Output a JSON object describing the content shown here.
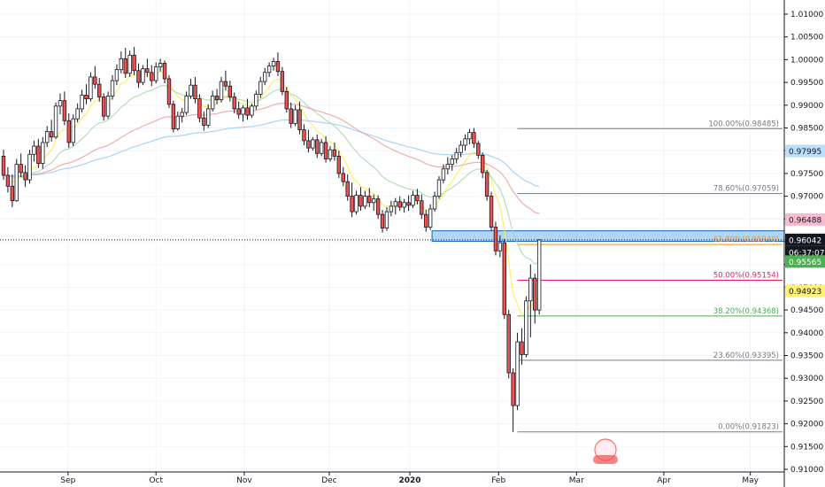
{
  "chart_data": {
    "type": "candlestick",
    "y_axis": {
      "side": "right",
      "range": [
        0.91,
        1.015
      ],
      "ticks": [
        "1.01000",
        "1.00500",
        "1.00000",
        "0.99500",
        "0.99000",
        "0.98500",
        "0.98000",
        "0.97500",
        "0.97000",
        "0.96500",
        "0.96000",
        "0.95500",
        "0.95000",
        "0.94500",
        "0.94000",
        "0.93500",
        "0.93000",
        "0.92500",
        "0.92000",
        "0.91500",
        "0.91000"
      ]
    },
    "x_axis": {
      "ticks": [
        {
          "label": "Sep",
          "pos": 0.0868,
          "bold": false
        },
        {
          "label": "Oct",
          "pos": 0.1989,
          "bold": false
        },
        {
          "label": "Nov",
          "pos": 0.3114,
          "bold": false
        },
        {
          "label": "Dec",
          "pos": 0.4198,
          "bold": false
        },
        {
          "label": "2020",
          "pos": 0.5226,
          "bold": true
        },
        {
          "label": "Feb",
          "pos": 0.6357,
          "bold": false
        },
        {
          "label": "Mar",
          "pos": 0.7351,
          "bold": false
        },
        {
          "label": "Apr",
          "pos": 0.8465,
          "bold": false
        },
        {
          "label": "May",
          "pos": 0.9567,
          "bold": false
        }
      ]
    },
    "fibonacci": [
      {
        "label": "100.00%(0.98485)",
        "value": 0.98485,
        "color": "#787b86"
      },
      {
        "label": "78.60%(0.97059)",
        "value": 0.97059,
        "color": "#787b86"
      },
      {
        "label": "61.80%(0.95940)",
        "value": 0.9594,
        "color": "#f7931a"
      },
      {
        "label": "50.00%(0.95154)",
        "value": 0.95154,
        "color": "#e91e63"
      },
      {
        "label": "38.20%(0.94368)",
        "value": 0.94368,
        "color": "#4caf50"
      },
      {
        "label": "23.60%(0.93395)",
        "value": 0.93395,
        "color": "#787b86"
      },
      {
        "label": "0.00%(0.91823)",
        "value": 0.91823,
        "color": "#787b86"
      }
    ],
    "price_badges": [
      {
        "value": 0.97995,
        "label": "0.97995",
        "bg": "#bbdefb",
        "fg": "#131722"
      },
      {
        "value": 0.96488,
        "label": "0.96488",
        "bg": "#f8bbd0",
        "fg": "#131722"
      },
      {
        "value": 0.96042,
        "label": "0.96042",
        "bg": "#131722",
        "fg": "#ffffff"
      },
      {
        "value": 0.95565,
        "label": "0.95565",
        "bg": "#4caf50",
        "fg": "#ffffff"
      },
      {
        "value": 0.94923,
        "label": "0.94923",
        "bg": "#fff176",
        "fg": "#131722"
      }
    ],
    "countdown": "06:37:07",
    "current_price": 0.96042,
    "support_zone": {
      "from": 0.9601,
      "to": 0.9624,
      "color": "#1565c0"
    },
    "colors": {
      "up": "#ffffff",
      "down": "#ef5350",
      "outline": "#131722",
      "grid": "#f0f3fa"
    },
    "candles": [
      [
        0.9788,
        0.9802,
        0.9736,
        0.9746
      ],
      [
        0.9746,
        0.9764,
        0.9708,
        0.9722
      ],
      [
        0.9722,
        0.9748,
        0.9676,
        0.969
      ],
      [
        0.969,
        0.9782,
        0.9688,
        0.977
      ],
      [
        0.977,
        0.9794,
        0.9742,
        0.9752
      ],
      [
        0.9752,
        0.9768,
        0.972,
        0.9736
      ],
      [
        0.9736,
        0.9802,
        0.9728,
        0.9792
      ],
      [
        0.9792,
        0.9822,
        0.9776,
        0.981
      ],
      [
        0.981,
        0.9826,
        0.9762,
        0.9772
      ],
      [
        0.9772,
        0.983,
        0.976,
        0.9818
      ],
      [
        0.9818,
        0.9854,
        0.9808,
        0.9842
      ],
      [
        0.9842,
        0.9868,
        0.982,
        0.983
      ],
      [
        0.983,
        0.9906,
        0.9826,
        0.9898
      ],
      [
        0.9898,
        0.9926,
        0.988,
        0.991
      ],
      [
        0.991,
        0.993,
        0.9856,
        0.9866
      ],
      [
        0.9866,
        0.9882,
        0.9806,
        0.9818
      ],
      [
        0.9818,
        0.988,
        0.981,
        0.987
      ],
      [
        0.987,
        0.9904,
        0.9862,
        0.9892
      ],
      [
        0.9892,
        0.9934,
        0.9884,
        0.9922
      ],
      [
        0.9922,
        0.9946,
        0.9902,
        0.9914
      ],
      [
        0.9914,
        0.9972,
        0.9908,
        0.9962
      ],
      [
        0.9962,
        0.9986,
        0.9936,
        0.9946
      ],
      [
        0.9946,
        0.996,
        0.9908,
        0.9918
      ],
      [
        0.9918,
        0.9926,
        0.9866,
        0.9876
      ],
      [
        0.9876,
        0.993,
        0.987,
        0.992
      ],
      [
        0.992,
        0.9966,
        0.9912,
        0.9954
      ],
      [
        0.9954,
        0.999,
        0.9944,
        0.9978
      ],
      [
        0.9978,
        1.0018,
        0.997,
        1.0002
      ],
      [
        1.0002,
        1.0026,
        0.996,
        0.997
      ],
      [
        0.997,
        1.002,
        0.9962,
        1.001
      ],
      [
        1.001,
        1.0028,
        0.9966,
        0.9976
      ],
      [
        0.9976,
        0.9992,
        0.9938,
        0.995
      ],
      [
        0.995,
        0.9988,
        0.9944,
        0.998
      ],
      [
        0.998,
        1.0002,
        0.9962,
        0.9972
      ],
      [
        0.9972,
        0.9988,
        0.9942,
        0.9954
      ],
      [
        0.9954,
        0.9994,
        0.9948,
        0.9984
      ],
      [
        0.9984,
        1.0002,
        0.9974,
        0.9992
      ],
      [
        0.9992,
        0.9998,
        0.9948,
        0.9958
      ],
      [
        0.9958,
        0.9966,
        0.9894,
        0.9902
      ],
      [
        0.9902,
        0.991,
        0.984,
        0.9848
      ],
      [
        0.9848,
        0.9886,
        0.9844,
        0.9876
      ],
      [
        0.9876,
        0.9894,
        0.9862,
        0.9884
      ],
      [
        0.9884,
        0.993,
        0.9878,
        0.992
      ],
      [
        0.992,
        0.9958,
        0.9914,
        0.9944
      ],
      [
        0.9944,
        0.9962,
        0.9904,
        0.9914
      ],
      [
        0.9914,
        0.9924,
        0.9862,
        0.9872
      ],
      [
        0.9872,
        0.9886,
        0.9844,
        0.9856
      ],
      [
        0.9856,
        0.9902,
        0.985,
        0.9892
      ],
      [
        0.9892,
        0.9932,
        0.9886,
        0.992
      ],
      [
        0.992,
        0.9936,
        0.9902,
        0.9912
      ],
      [
        0.9912,
        0.9962,
        0.9906,
        0.9952
      ],
      [
        0.9952,
        0.9976,
        0.9932,
        0.9942
      ],
      [
        0.9942,
        0.9954,
        0.9908,
        0.9918
      ],
      [
        0.9918,
        0.9928,
        0.9882,
        0.9892
      ],
      [
        0.9892,
        0.9908,
        0.987,
        0.988
      ],
      [
        0.988,
        0.99,
        0.9864,
        0.9894
      ],
      [
        0.9894,
        0.9914,
        0.9868,
        0.9878
      ],
      [
        0.9878,
        0.9904,
        0.9872,
        0.9898
      ],
      [
        0.9898,
        0.9932,
        0.989,
        0.9924
      ],
      [
        0.9924,
        0.9962,
        0.9916,
        0.9952
      ],
      [
        0.9952,
        0.9982,
        0.9944,
        0.9972
      ],
      [
        0.9972,
        0.9994,
        0.9962,
        0.9986
      ],
      [
        0.9986,
        1.0004,
        0.9976,
        0.9996
      ],
      [
        0.9996,
        1.0016,
        0.9964,
        0.9974
      ],
      [
        0.9974,
        0.9984,
        0.9922,
        0.993
      ],
      [
        0.993,
        0.994,
        0.9884,
        0.9892
      ],
      [
        0.9892,
        0.9906,
        0.985,
        0.986
      ],
      [
        0.986,
        0.99,
        0.9854,
        0.989
      ],
      [
        0.989,
        0.9908,
        0.9836,
        0.9846
      ],
      [
        0.9846,
        0.9858,
        0.9812,
        0.9822
      ],
      [
        0.9822,
        0.9846,
        0.9796,
        0.9806
      ],
      [
        0.9806,
        0.983,
        0.98,
        0.9824
      ],
      [
        0.9824,
        0.9836,
        0.9784,
        0.9794
      ],
      [
        0.9794,
        0.9826,
        0.9788,
        0.9818
      ],
      [
        0.9818,
        0.9832,
        0.9774,
        0.9782
      ],
      [
        0.9782,
        0.981,
        0.9776,
        0.9802
      ],
      [
        0.9802,
        0.9818,
        0.9778,
        0.9788
      ],
      [
        0.9788,
        0.98,
        0.974,
        0.975
      ],
      [
        0.975,
        0.9764,
        0.9722,
        0.9732
      ],
      [
        0.9732,
        0.9748,
        0.969,
        0.97
      ],
      [
        0.97,
        0.973,
        0.9654,
        0.9666
      ],
      [
        0.9666,
        0.9712,
        0.966,
        0.9702
      ],
      [
        0.9702,
        0.972,
        0.9668,
        0.9678
      ],
      [
        0.9678,
        0.9712,
        0.9672,
        0.97
      ],
      [
        0.97,
        0.9718,
        0.9676,
        0.9686
      ],
      [
        0.9686,
        0.9704,
        0.9668,
        0.9694
      ],
      [
        0.9694,
        0.9702,
        0.965,
        0.966
      ],
      [
        0.966,
        0.967,
        0.962,
        0.963
      ],
      [
        0.963,
        0.9676,
        0.9624,
        0.9666
      ],
      [
        0.9666,
        0.969,
        0.9656,
        0.9678
      ],
      [
        0.9678,
        0.9696,
        0.966,
        0.9688
      ],
      [
        0.9688,
        0.97,
        0.9668,
        0.9676
      ],
      [
        0.9676,
        0.9694,
        0.9664,
        0.9686
      ],
      [
        0.9686,
        0.9702,
        0.9668,
        0.968
      ],
      [
        0.968,
        0.9712,
        0.9674,
        0.9702
      ],
      [
        0.9702,
        0.9716,
        0.9682,
        0.969
      ],
      [
        0.969,
        0.9704,
        0.965,
        0.966
      ],
      [
        0.966,
        0.967,
        0.9622,
        0.9632
      ],
      [
        0.9632,
        0.9682,
        0.9626,
        0.9672
      ],
      [
        0.9672,
        0.971,
        0.9666,
        0.97
      ],
      [
        0.97,
        0.9744,
        0.9694,
        0.9736
      ],
      [
        0.9736,
        0.977,
        0.9728,
        0.976
      ],
      [
        0.976,
        0.9786,
        0.9748,
        0.977
      ],
      [
        0.977,
        0.979,
        0.9756,
        0.9782
      ],
      [
        0.9782,
        0.9806,
        0.9772,
        0.9796
      ],
      [
        0.9796,
        0.9822,
        0.9786,
        0.9812
      ],
      [
        0.9812,
        0.9836,
        0.98,
        0.9826
      ],
      [
        0.9826,
        0.9848,
        0.9814,
        0.984
      ],
      [
        0.984,
        0.985,
        0.9806,
        0.9816
      ],
      [
        0.9816,
        0.9822,
        0.9782,
        0.979
      ],
      [
        0.979,
        0.9796,
        0.974,
        0.9752
      ],
      [
        0.9752,
        0.9758,
        0.969,
        0.97
      ],
      [
        0.97,
        0.971,
        0.9624,
        0.9632
      ],
      [
        0.9632,
        0.9644,
        0.957,
        0.958
      ],
      [
        0.958,
        0.9614,
        0.9566,
        0.9598
      ],
      [
        0.9598,
        0.9606,
        0.943,
        0.944
      ],
      [
        0.944,
        0.945,
        0.93,
        0.9312
      ],
      [
        0.9312,
        0.9322,
        0.9182,
        0.924
      ],
      [
        0.924,
        0.94,
        0.923,
        0.938
      ],
      [
        0.938,
        0.941,
        0.933,
        0.9352
      ],
      [
        0.9352,
        0.948,
        0.9346,
        0.947
      ],
      [
        0.947,
        0.955,
        0.939,
        0.952
      ],
      [
        0.952,
        0.953,
        0.942,
        0.945
      ],
      [
        0.945,
        0.9606,
        0.944,
        0.9604
      ]
    ]
  }
}
